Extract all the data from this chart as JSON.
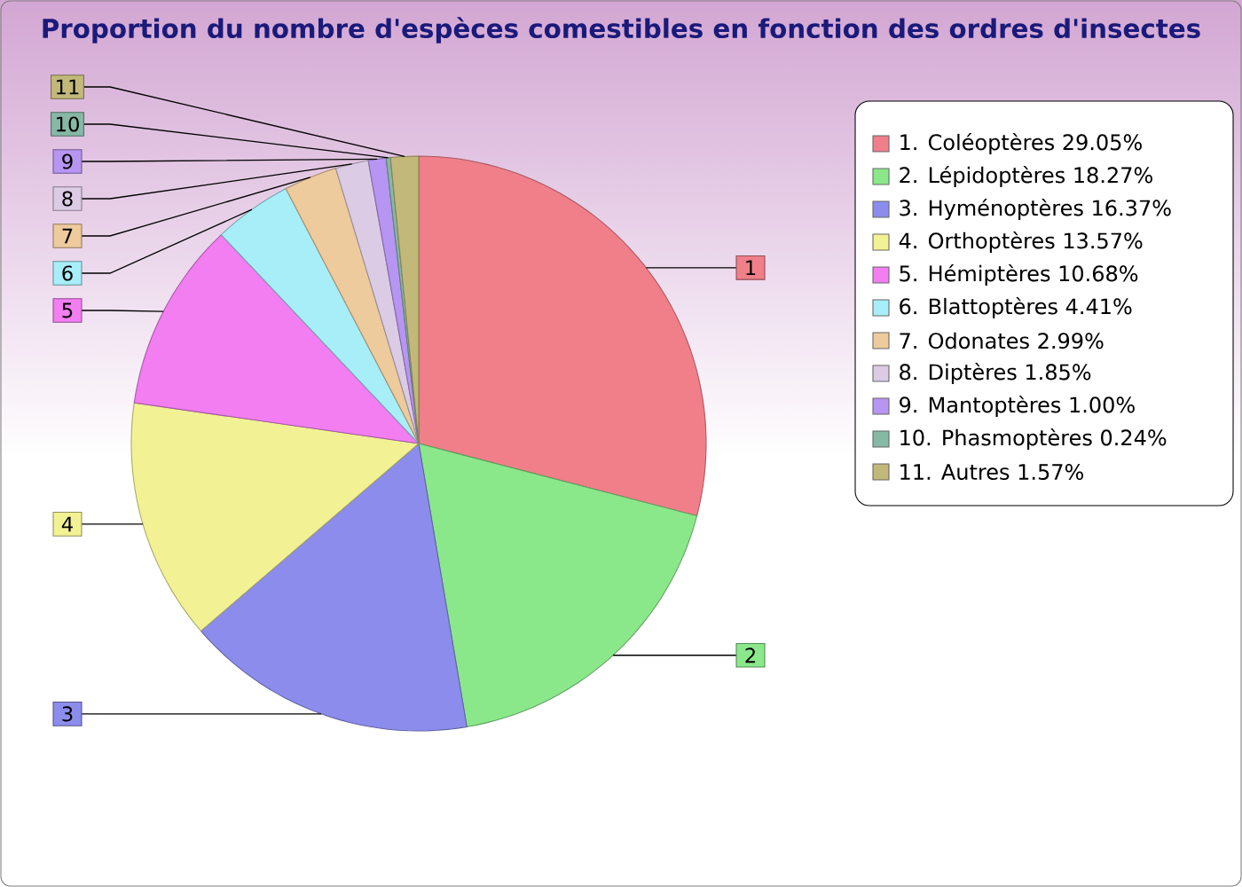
{
  "chart_data": {
    "type": "pie",
    "title": "Proportion du nombre d'espèces comestibles en fonction des ordres d'insectes",
    "categories": [
      "1. Coléoptères 29.05%",
      "2. Lépidoptères 18.27%",
      "3. Hyménoptères 16.37%",
      "4. Orthoptères 13.57%",
      "5. Hémiptères 10.68%",
      "6. Blattoptères 4.41%",
      "7. Odonates 2.99%",
      "8. Diptères 1.85%",
      "9. Mantoptères 1.00%",
      "10. Phasmoptères 0.24%",
      "11. Autres 1.57%"
    ],
    "values": [
      29.05,
      18.27,
      16.37,
      13.57,
      10.68,
      4.41,
      2.99,
      1.85,
      1.0,
      0.24,
      1.57
    ],
    "colors": [
      "#f07f8a",
      "#8ae88a",
      "#8c8cec",
      "#f2f294",
      "#f27ef2",
      "#a8eef8",
      "#eecb9c",
      "#dccbe4",
      "#b795f2",
      "#86b8a6",
      "#c2b87a"
    ],
    "annotations": [
      "1",
      "2",
      "3",
      "4",
      "5",
      "6",
      "7",
      "8",
      "9",
      "10",
      "11"
    ],
    "legend": "right"
  }
}
